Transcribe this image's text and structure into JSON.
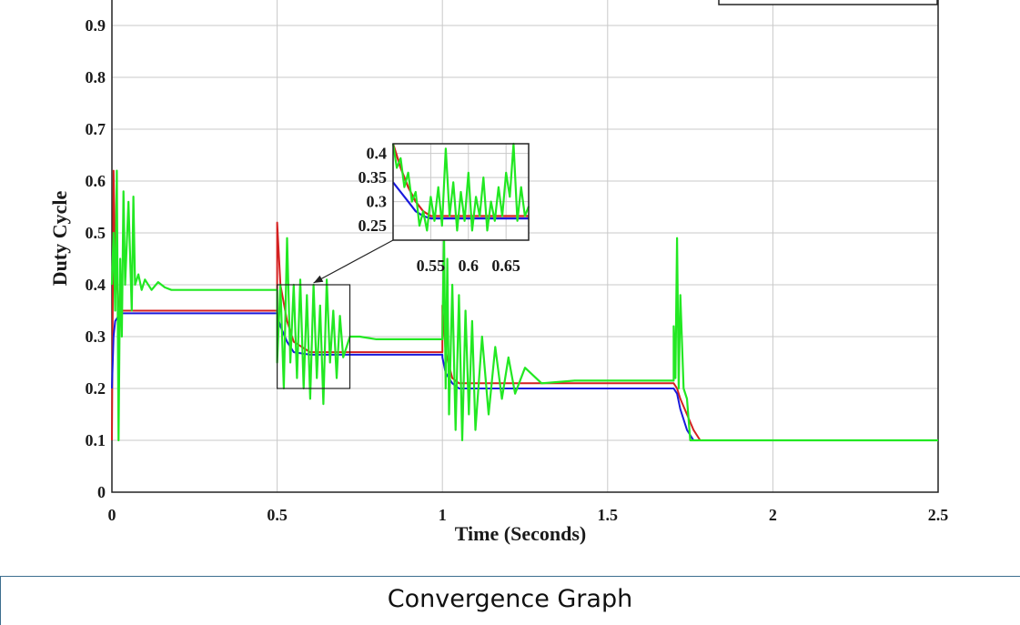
{
  "caption": "Convergence Graph",
  "chart_data": {
    "type": "line",
    "title": "",
    "xlabel": "Time (Seconds)",
    "ylabel": "Duty Cycle",
    "xlim": [
      0,
      2.5
    ],
    "ylim": [
      0,
      0.95
    ],
    "grid": true,
    "x_ticks": [
      "0",
      "0.5",
      "1",
      "1.5",
      "2",
      "2.5"
    ],
    "y_ticks": [
      "0",
      "0.1",
      "0.2",
      "0.3",
      "0.4",
      "0.5",
      "0.6",
      "0.7",
      "0.8",
      "0.9"
    ],
    "colors": {
      "green": "#22e822",
      "red": "#d42020",
      "blue": "#1a1adc",
      "dark": "#222222"
    },
    "series": [
      {
        "color": "red",
        "x": [
          0,
          0.005,
          0.01,
          0.02,
          0.03,
          0.05,
          0.5,
          0.5,
          0.51,
          0.53,
          0.55,
          0.6,
          1.0,
          1.0,
          1.01,
          1.03,
          1.05,
          1.1,
          1.7,
          1.71,
          1.72,
          1.74,
          1.76,
          1.78,
          2.5
        ],
        "y": [
          0.1,
          0.62,
          0.45,
          0.36,
          0.35,
          0.35,
          0.35,
          0.52,
          0.4,
          0.33,
          0.29,
          0.27,
          0.27,
          0.36,
          0.27,
          0.22,
          0.21,
          0.21,
          0.21,
          0.2,
          0.18,
          0.15,
          0.12,
          0.1,
          0.1
        ]
      },
      {
        "color": "blue",
        "x": [
          0,
          0.005,
          0.01,
          0.02,
          0.03,
          0.05,
          0.5,
          0.5,
          0.51,
          0.53,
          0.55,
          0.6,
          1.0,
          1.0,
          1.01,
          1.03,
          1.05,
          1.1,
          1.7,
          1.71,
          1.72,
          1.74,
          1.76,
          2.5
        ],
        "y": [
          0.2,
          0.3,
          0.33,
          0.34,
          0.345,
          0.345,
          0.345,
          0.34,
          0.32,
          0.29,
          0.27,
          0.265,
          0.265,
          0.26,
          0.23,
          0.21,
          0.2,
          0.2,
          0.2,
          0.19,
          0.16,
          0.12,
          0.1,
          0.1
        ]
      },
      {
        "color": "green",
        "x": [
          0,
          0.005,
          0.01,
          0.015,
          0.02,
          0.025,
          0.03,
          0.035,
          0.04,
          0.05,
          0.06,
          0.065,
          0.07,
          0.08,
          0.09,
          0.1,
          0.12,
          0.14,
          0.16,
          0.18,
          0.2,
          0.25,
          0.3,
          0.4,
          0.5,
          0.5,
          0.51,
          0.52,
          0.53,
          0.54,
          0.55,
          0.56,
          0.57,
          0.58,
          0.59,
          0.6,
          0.61,
          0.62,
          0.63,
          0.64,
          0.65,
          0.66,
          0.67,
          0.68,
          0.69,
          0.7,
          0.72,
          0.75,
          0.8,
          0.9,
          1.0,
          1.0,
          1.005,
          1.01,
          1.015,
          1.02,
          1.03,
          1.04,
          1.05,
          1.06,
          1.07,
          1.08,
          1.09,
          1.1,
          1.12,
          1.14,
          1.16,
          1.18,
          1.2,
          1.22,
          1.25,
          1.3,
          1.4,
          1.5,
          1.6,
          1.7,
          1.7,
          1.705,
          1.71,
          1.715,
          1.72,
          1.73,
          1.74,
          1.75,
          1.76,
          1.8,
          2.0,
          2.5
        ],
        "y": [
          0.4,
          0.5,
          0.35,
          0.62,
          0.1,
          0.45,
          0.3,
          0.58,
          0.4,
          0.56,
          0.35,
          0.57,
          0.4,
          0.42,
          0.39,
          0.41,
          0.39,
          0.405,
          0.395,
          0.39,
          0.39,
          0.39,
          0.39,
          0.39,
          0.39,
          0.25,
          0.4,
          0.2,
          0.49,
          0.25,
          0.4,
          0.22,
          0.41,
          0.2,
          0.38,
          0.18,
          0.4,
          0.22,
          0.36,
          0.17,
          0.41,
          0.25,
          0.35,
          0.22,
          0.34,
          0.26,
          0.3,
          0.3,
          0.295,
          0.295,
          0.295,
          0.3,
          0.5,
          0.2,
          0.45,
          0.15,
          0.4,
          0.12,
          0.38,
          0.1,
          0.35,
          0.15,
          0.33,
          0.12,
          0.3,
          0.15,
          0.28,
          0.18,
          0.26,
          0.19,
          0.24,
          0.21,
          0.215,
          0.215,
          0.215,
          0.215,
          0.32,
          0.22,
          0.49,
          0.2,
          0.38,
          0.2,
          0.18,
          0.1,
          0.1,
          0.1,
          0.1,
          0.1
        ]
      }
    ],
    "zoom_box": {
      "x": [
        0.5,
        0.72
      ],
      "y": [
        0.2,
        0.4
      ]
    },
    "inset": {
      "xlim": [
        0.5,
        0.68
      ],
      "ylim": [
        0.22,
        0.42
      ],
      "x_ticks": [
        "0.55",
        "0.6",
        "0.65"
      ],
      "y_ticks": [
        "0.25",
        "0.3",
        "0.35",
        "0.4"
      ],
      "series": [
        {
          "color": "red",
          "x": [
            0.5,
            0.51,
            0.52,
            0.53,
            0.54,
            0.55,
            0.68
          ],
          "y": [
            0.42,
            0.37,
            0.33,
            0.3,
            0.28,
            0.27,
            0.27
          ]
        },
        {
          "color": "blue",
          "x": [
            0.5,
            0.51,
            0.52,
            0.53,
            0.54,
            0.55,
            0.68
          ],
          "y": [
            0.34,
            0.32,
            0.3,
            0.28,
            0.27,
            0.265,
            0.265
          ]
        },
        {
          "color": "green",
          "x": [
            0.5,
            0.505,
            0.51,
            0.515,
            0.52,
            0.525,
            0.53,
            0.535,
            0.54,
            0.545,
            0.55,
            0.555,
            0.56,
            0.565,
            0.57,
            0.575,
            0.58,
            0.585,
            0.59,
            0.595,
            0.6,
            0.605,
            0.61,
            0.615,
            0.62,
            0.625,
            0.63,
            0.635,
            0.64,
            0.645,
            0.65,
            0.655,
            0.66,
            0.665,
            0.67,
            0.675,
            0.68
          ],
          "y": [
            0.42,
            0.37,
            0.39,
            0.33,
            0.36,
            0.3,
            0.32,
            0.25,
            0.28,
            0.24,
            0.31,
            0.26,
            0.33,
            0.25,
            0.41,
            0.27,
            0.34,
            0.24,
            0.32,
            0.26,
            0.36,
            0.24,
            0.31,
            0.27,
            0.35,
            0.24,
            0.3,
            0.26,
            0.33,
            0.27,
            0.36,
            0.31,
            0.42,
            0.26,
            0.33,
            0.27,
            0.29
          ]
        }
      ]
    }
  }
}
